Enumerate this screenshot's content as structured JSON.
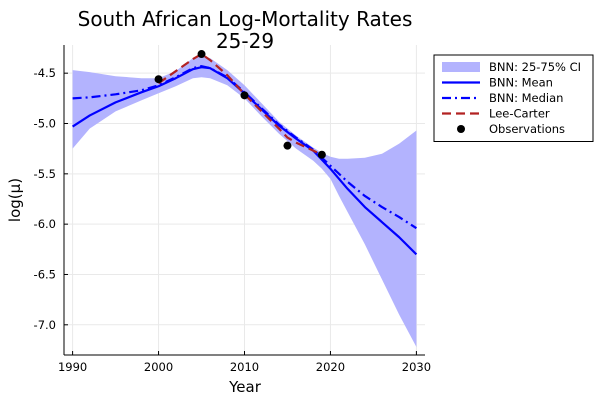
{
  "chart_data": {
    "type": "line",
    "title": "South African Log-Mortality Rates",
    "subtitle": "25-29",
    "xlabel": "Year",
    "ylabel": "log(μ)",
    "xlim": [
      1989,
      2031
    ],
    "ylim": [
      -7.3,
      -4.22
    ],
    "x_ticks": [
      1990,
      2000,
      2010,
      2020,
      2030
    ],
    "y_ticks": [
      -4.5,
      -5.0,
      -5.5,
      -6.0,
      -6.5,
      -7.0
    ],
    "x_tick_labels": [
      "1990",
      "2000",
      "2010",
      "2020",
      "2030"
    ],
    "y_tick_labels": [
      "-4.5",
      "-5.0",
      "-5.5",
      "-6.0",
      "-6.5",
      "-7.0"
    ],
    "grid": true,
    "legend_position": "top-right outside",
    "legend": [
      {
        "label": "BNN: 25-75% CI",
        "kind": "band",
        "color": "#b3b3fe"
      },
      {
        "label": "BNN: Mean",
        "kind": "line",
        "color": "#0000ff"
      },
      {
        "label": "BNN: Median",
        "kind": "dashdot",
        "color": "#0000ff"
      },
      {
        "label": "Lee-Carter",
        "kind": "dash",
        "color": "#b22222"
      },
      {
        "label": "Observations",
        "kind": "marker",
        "color": "#000000"
      }
    ],
    "series": [
      {
        "name": "BNN: 25-75% CI",
        "kind": "band",
        "color": "#b3b3fe",
        "x": [
          1990,
          1992,
          1995,
          1998,
          2000,
          2002,
          2004,
          2005,
          2006,
          2008,
          2010,
          2012,
          2014,
          2016,
          2018,
          2019,
          2020,
          2021,
          2022,
          2024,
          2026,
          2028,
          2030
        ],
        "upper": [
          -4.47,
          -4.49,
          -4.53,
          -4.55,
          -4.55,
          -4.48,
          -4.35,
          -4.33,
          -4.35,
          -4.47,
          -4.62,
          -4.8,
          -4.98,
          -5.12,
          -5.24,
          -5.29,
          -5.33,
          -5.35,
          -5.35,
          -5.34,
          -5.3,
          -5.2,
          -5.07
        ],
        "lower": [
          -5.25,
          -5.05,
          -4.88,
          -4.77,
          -4.7,
          -4.63,
          -4.55,
          -4.54,
          -4.55,
          -4.62,
          -4.75,
          -4.93,
          -5.1,
          -5.25,
          -5.37,
          -5.45,
          -5.55,
          -5.72,
          -5.88,
          -6.2,
          -6.55,
          -6.9,
          -7.22
        ]
      },
      {
        "name": "BNN: Mean",
        "kind": "line",
        "color": "#0000ff",
        "x": [
          1990,
          1992,
          1995,
          1998,
          2000,
          2002,
          2004,
          2005,
          2006,
          2008,
          2010,
          2012,
          2014,
          2016,
          2018,
          2020,
          2022,
          2024,
          2026,
          2028,
          2030
        ],
        "y": [
          -5.03,
          -4.92,
          -4.79,
          -4.69,
          -4.63,
          -4.55,
          -4.46,
          -4.44,
          -4.45,
          -4.55,
          -4.7,
          -4.86,
          -5.02,
          -5.15,
          -5.27,
          -5.45,
          -5.65,
          -5.83,
          -5.98,
          -6.13,
          -6.3
        ]
      },
      {
        "name": "BNN: Median",
        "kind": "dashdot",
        "color": "#0000ff",
        "x": [
          1990,
          1992,
          1995,
          1998,
          2000,
          2002,
          2004,
          2005,
          2006,
          2008,
          2010,
          2012,
          2014,
          2016,
          2018,
          2020,
          2022,
          2024,
          2026,
          2028,
          2030
        ],
        "y": [
          -4.75,
          -4.74,
          -4.71,
          -4.67,
          -4.62,
          -4.54,
          -4.45,
          -4.43,
          -4.45,
          -4.54,
          -4.69,
          -4.85,
          -5.01,
          -5.14,
          -5.26,
          -5.42,
          -5.58,
          -5.72,
          -5.83,
          -5.93,
          -6.04
        ]
      },
      {
        "name": "Lee-Carter",
        "kind": "dash",
        "color": "#b22222",
        "x": [
          2000,
          2002,
          2004,
          2005,
          2006,
          2008,
          2010,
          2012,
          2014,
          2015,
          2016,
          2018,
          2019
        ],
        "y": [
          -4.6,
          -4.48,
          -4.36,
          -4.31,
          -4.37,
          -4.52,
          -4.71,
          -4.88,
          -5.05,
          -5.14,
          -5.19,
          -5.27,
          -5.31
        ]
      },
      {
        "name": "Observations",
        "kind": "scatter",
        "color": "#000000",
        "x": [
          2000,
          2005,
          2010,
          2015,
          2019
        ],
        "y": [
          -4.56,
          -4.31,
          -4.72,
          -5.22,
          -5.31
        ]
      }
    ]
  }
}
